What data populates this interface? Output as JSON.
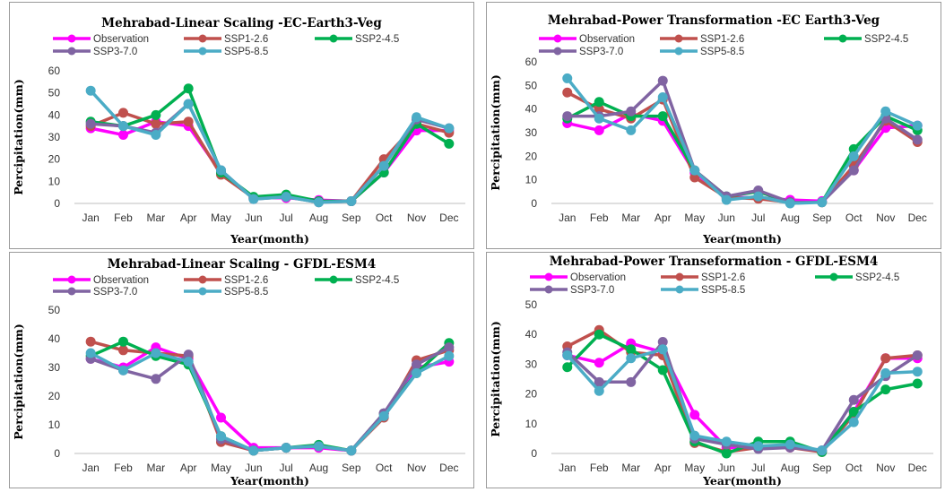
{
  "chart_data": [
    {
      "type": "line",
      "title": "Mehrabad-Linear Scaling -EC-Earth3-Veg",
      "xlabel": "Year(month)",
      "ylabel": "Percipitation(mm)",
      "ylim": [
        0,
        60
      ],
      "yticks": [
        0,
        10,
        20,
        30,
        40,
        50,
        60
      ],
      "grid": false,
      "legend": "top",
      "categories": [
        "Jan",
        "Feb",
        "Mar",
        "Apr",
        "May",
        "Jun",
        "Jul",
        "Aug",
        "Sep",
        "Oct",
        "Nov",
        "Dec"
      ],
      "series": [
        {
          "name": "Observation",
          "color": "#ff00ff",
          "values": [
            34,
            31,
            37,
            35,
            14,
            2.5,
            2.5,
            1.5,
            1,
            14,
            33,
            33
          ]
        },
        {
          "name": "SSP1-2.6",
          "color": "#c0504d",
          "values": [
            35,
            41,
            36,
            37,
            13,
            2.5,
            3,
            1,
            1,
            20,
            36,
            32
          ]
        },
        {
          "name": "SSP2-4.5",
          "color": "#00b050",
          "values": [
            37,
            35,
            40,
            52,
            14,
            3,
            4,
            1,
            1,
            14,
            36,
            27
          ]
        },
        {
          "name": "SSP3-7.0",
          "color": "#8064a2",
          "values": [
            36,
            35,
            32,
            45,
            15,
            2,
            3,
            0.5,
            1,
            17,
            38,
            34
          ]
        },
        {
          "name": "SSP5-8.5",
          "color": "#4bacc6",
          "values": [
            51,
            35,
            31,
            45,
            15,
            2,
            3,
            0.5,
            1,
            17,
            39,
            34
          ]
        }
      ]
    },
    {
      "type": "line",
      "title": "Mehrabad-Power Transformation -EC Earth3-Veg",
      "xlabel": "Year(month)",
      "ylabel": "Percipitation(mm)",
      "ylim": [
        0,
        60
      ],
      "yticks": [
        0,
        10,
        20,
        30,
        40,
        50,
        60
      ],
      "grid": false,
      "legend": "top",
      "categories": [
        "Jan",
        "Feb",
        "Mar",
        "Apr",
        "May",
        "Jun",
        "Jul",
        "Aug",
        "Sep",
        "Oct",
        "Nov",
        "Dec"
      ],
      "series": [
        {
          "name": "Observation",
          "color": "#ff00ff",
          "values": [
            34,
            31,
            38,
            35,
            13,
            2.5,
            2.5,
            1.5,
            1,
            14,
            32,
            33
          ]
        },
        {
          "name": "SSP1-2.6",
          "color": "#c0504d",
          "values": [
            47,
            40,
            36,
            44,
            11,
            2.5,
            2,
            0.5,
            0.5,
            16,
            35,
            26
          ]
        },
        {
          "name": "SSP2-4.5",
          "color": "#00b050",
          "values": [
            36,
            43,
            37,
            37,
            14,
            3,
            5,
            0.5,
            0.5,
            23,
            37,
            31
          ]
        },
        {
          "name": "SSP3-7.0",
          "color": "#8064a2",
          "values": [
            37,
            37,
            39,
            52,
            14,
            3,
            5.5,
            0.5,
            0.5,
            14,
            36,
            27
          ]
        },
        {
          "name": "SSP5-8.5",
          "color": "#4bacc6",
          "values": [
            53,
            36,
            31,
            45,
            14,
            1.5,
            3,
            0,
            0.5,
            20,
            39,
            33
          ]
        }
      ]
    },
    {
      "type": "line",
      "title": "Mehrabad-Linear Scaling - GFDL-ESM4",
      "xlabel": "Year(month)",
      "ylabel": "Percipitation(mm)",
      "ylim": [
        0,
        50
      ],
      "yticks": [
        0,
        10,
        20,
        30,
        40,
        50
      ],
      "grid": false,
      "legend": "top",
      "categories": [
        "Jan",
        "Feb",
        "Mar",
        "Apr",
        "May",
        "Jun",
        "Jul",
        "Aug",
        "Sep",
        "Oct",
        "Nov",
        "Dec"
      ],
      "series": [
        {
          "name": "Observation",
          "color": "#ff00ff",
          "values": [
            33,
            30,
            37,
            33,
            12.5,
            2,
            2,
            2,
            1,
            14,
            30,
            32
          ]
        },
        {
          "name": "SSP1-2.6",
          "color": "#c0504d",
          "values": [
            39,
            36,
            35,
            34,
            4,
            1,
            2,
            2.5,
            1,
            12.5,
            32.5,
            36
          ]
        },
        {
          "name": "SSP2-4.5",
          "color": "#00b050",
          "values": [
            34,
            39,
            34,
            31,
            6,
            1,
            2,
            3,
            1,
            14,
            28,
            38.5
          ]
        },
        {
          "name": "SSP3-7.0",
          "color": "#8064a2",
          "values": [
            33,
            29,
            26,
            34.5,
            5,
            1,
            2,
            2.5,
            1,
            14,
            31,
            37
          ]
        },
        {
          "name": "SSP5-8.5",
          "color": "#4bacc6",
          "values": [
            35,
            29,
            35,
            32,
            6,
            1,
            2,
            2.5,
            1,
            13,
            28,
            34
          ]
        }
      ]
    },
    {
      "type": "line",
      "title": "Mehrabad-Power Transeformation - GFDL-ESM4",
      "xlabel": "Year(month)",
      "ylabel": "Percipitation(mm)",
      "ylim": [
        0,
        50
      ],
      "yticks": [
        0,
        10,
        20,
        30,
        40,
        50
      ],
      "grid": false,
      "legend": "top",
      "categories": [
        "Jan",
        "Feb",
        "Mar",
        "Apr",
        "May",
        "Jun",
        "Jul",
        "Aug",
        "Sep",
        "Oct",
        "Nov",
        "Dec"
      ],
      "series": [
        {
          "name": "Observation",
          "color": "#ff00ff",
          "values": [
            33,
            30.5,
            37,
            34,
            13,
            2,
            2,
            2,
            1,
            14,
            32,
            32
          ]
        },
        {
          "name": "SSP1-2.6",
          "color": "#c0504d",
          "values": [
            36,
            41.5,
            34,
            33,
            3.5,
            0.5,
            2,
            2,
            0.5,
            13,
            32,
            33
          ]
        },
        {
          "name": "SSP2-4.5",
          "color": "#00b050",
          "values": [
            29,
            40,
            35,
            28,
            4,
            0,
            4,
            4,
            0.5,
            14,
            21.5,
            23.5
          ]
        },
        {
          "name": "SSP3-7.0",
          "color": "#8064a2",
          "values": [
            34,
            24,
            24,
            37.5,
            5,
            3,
            1.5,
            2,
            1,
            18,
            26,
            33
          ]
        },
        {
          "name": "SSP5-8.5",
          "color": "#4bacc6",
          "values": [
            33,
            21,
            32,
            35,
            6,
            4,
            2.5,
            3,
            1,
            10.5,
            27,
            27.5
          ]
        }
      ]
    }
  ]
}
